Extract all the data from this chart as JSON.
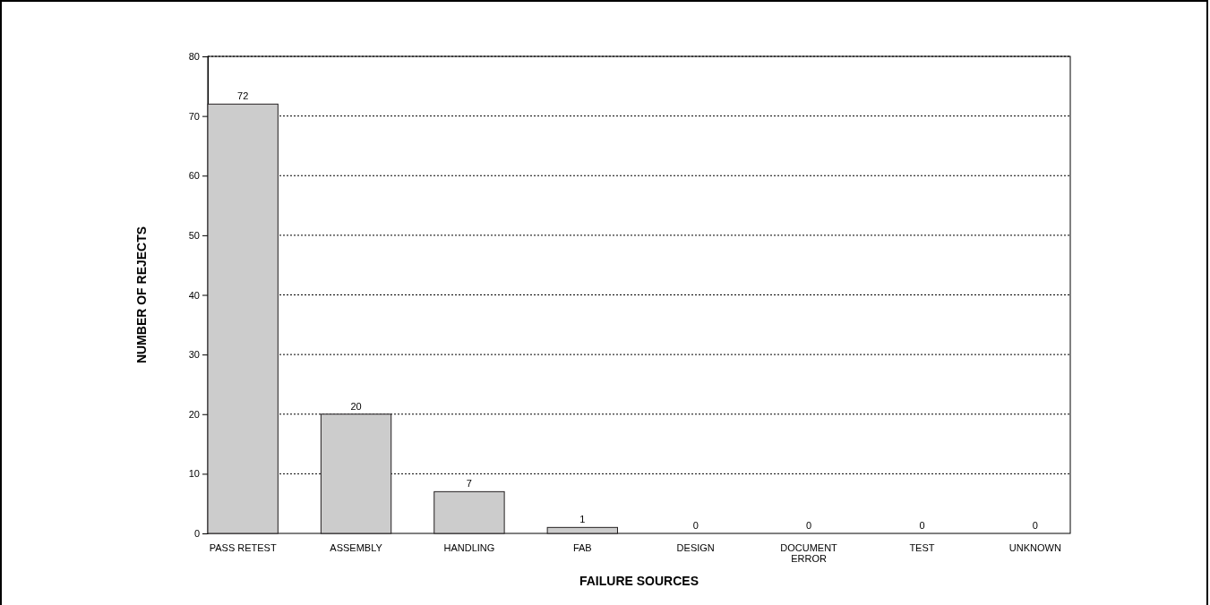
{
  "chart_data": {
    "type": "bar",
    "xlabel": "FAILURE SOURCES",
    "ylabel": "NUMBER OF REJECTS",
    "categories": [
      "PASS RETEST",
      "ASSEMBLY",
      "HANDLING",
      "FAB",
      "DESIGN",
      "DOCUMENT ERROR",
      "TEST",
      "UNKNOWN"
    ],
    "values": [
      72,
      20,
      7,
      1,
      0,
      0,
      0,
      0
    ],
    "color": "#cccccc",
    "ylim": [
      0,
      80
    ],
    "yticks": [
      0,
      10,
      20,
      30,
      40,
      50,
      60,
      70,
      80
    ],
    "grid": "y",
    "data_labels": true
  }
}
